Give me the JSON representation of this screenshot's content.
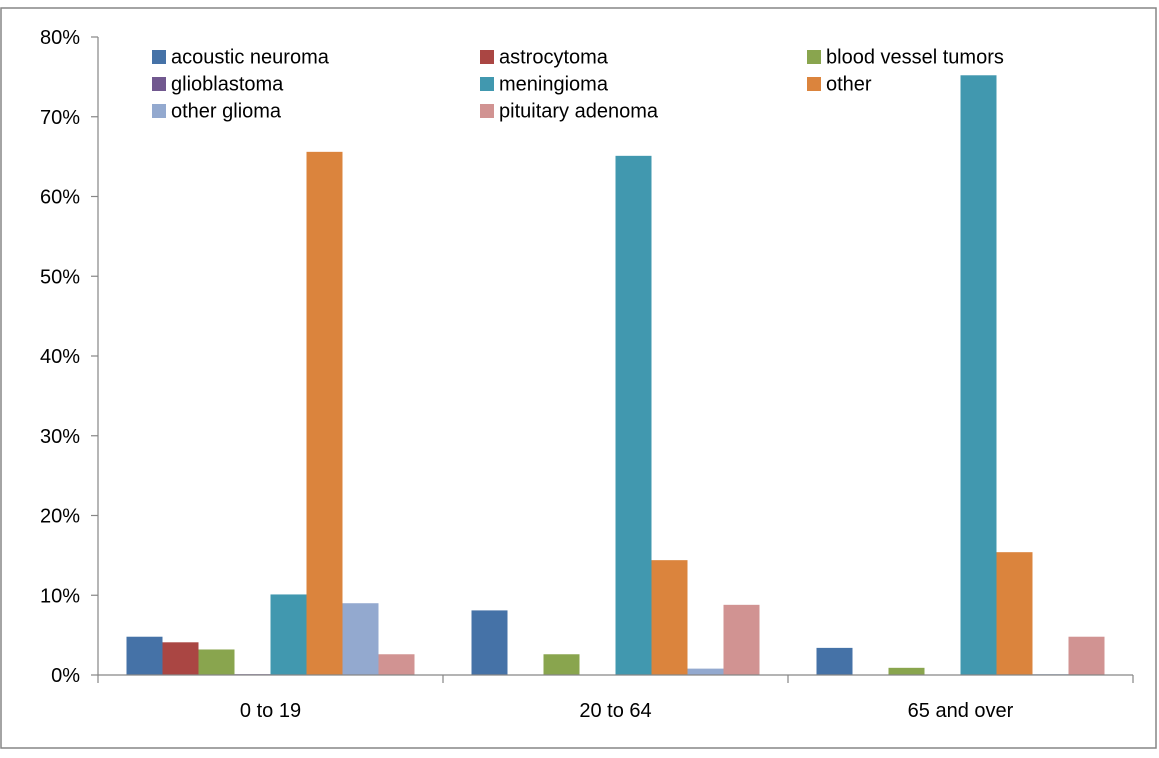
{
  "chart_data": {
    "type": "bar",
    "categories": [
      "0 to 19",
      "20 to 64",
      "65 and over"
    ],
    "series": [
      {
        "name": "acoustic neuroma",
        "color": "#4572A7",
        "values": [
          4.8,
          8.1,
          3.4
        ]
      },
      {
        "name": "astrocytoma",
        "color": "#AA4643",
        "values": [
          4.1,
          0.0,
          0.0
        ]
      },
      {
        "name": "blood vessel tumors",
        "color": "#89A54E",
        "values": [
          3.2,
          2.6,
          0.9
        ]
      },
      {
        "name": "glioblastoma",
        "color": "#71588F",
        "values": [
          0.1,
          0.0,
          0.0
        ]
      },
      {
        "name": "meningioma",
        "color": "#4198AF",
        "values": [
          10.1,
          65.1,
          75.2
        ]
      },
      {
        "name": "other",
        "color": "#DB843D",
        "values": [
          65.6,
          14.4,
          15.4
        ]
      },
      {
        "name": "other glioma",
        "color": "#93A9CF",
        "values": [
          9.0,
          0.8,
          0.1
        ]
      },
      {
        "name": "pituitary adenoma",
        "color": "#D19392",
        "values": [
          2.6,
          8.8,
          4.8
        ]
      }
    ],
    "y_unit": "%",
    "ylim": [
      0,
      80
    ],
    "y_ticks": [
      0,
      10,
      20,
      30,
      40,
      50,
      60,
      70,
      80
    ],
    "y_tick_labels": [
      "0%",
      "10%",
      "20%",
      "30%",
      "40%",
      "50%",
      "60%",
      "70%",
      "80%"
    ],
    "grid": false,
    "legend_position": "top",
    "legend_columns": 3
  }
}
